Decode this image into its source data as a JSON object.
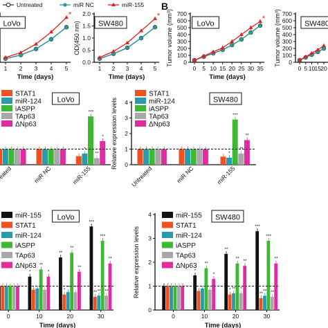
{
  "figure": {
    "panel_label_b": "B",
    "top_legend": [
      {
        "name": "Untreated",
        "color": "#333333",
        "marker": "open-circle"
      },
      {
        "name": "miR NC",
        "color": "#2a9a9a",
        "marker": "circle"
      },
      {
        "name": "miR-155",
        "color": "#e02020",
        "marker": "triangle"
      }
    ],
    "colors": {
      "Untreated": "#333333",
      "miR NC": "#2a9a9a",
      "miR-155": "#e02020",
      "STAT1": "#f05020",
      "miR-124": "#2a9aa8",
      "iASPP": "#3cb832",
      "TAp63": "#a8a8a8",
      "ΔNp63": "#e02ca0",
      "miR-155 bar": "#111111"
    }
  },
  "chart_data": [
    {
      "id": "a1",
      "type": "line",
      "title": "LoVo",
      "xlabel": "Time (days)",
      "ylabel": "",
      "x": [
        1,
        2,
        3,
        4,
        5
      ],
      "xticks": [
        "1",
        "2",
        "3",
        "4",
        "5"
      ],
      "ylim": [
        0,
        2.0
      ],
      "series": [
        {
          "name": "Untreated",
          "values": [
            0.15,
            0.3,
            0.55,
            0.95,
            1.45
          ]
        },
        {
          "name": "miR NC",
          "values": [
            0.15,
            0.3,
            0.55,
            0.95,
            1.45
          ]
        },
        {
          "name": "miR-155",
          "values": [
            0.2,
            0.4,
            0.75,
            1.25,
            1.85
          ]
        }
      ],
      "annotations": [
        "*"
      ]
    },
    {
      "id": "a2",
      "type": "line",
      "title": "SW480",
      "xlabel": "Time (days)",
      "ylabel": "OD(450 nm)",
      "x": [
        1,
        2,
        3,
        4,
        5
      ],
      "xticks": [
        "1",
        "2",
        "3",
        "4",
        "5"
      ],
      "yticks": [
        "0.0",
        "0.5",
        "1.0",
        "1.5",
        "2.0"
      ],
      "ylim": [
        0,
        2.0
      ],
      "series": [
        {
          "name": "Untreated",
          "values": [
            0.15,
            0.35,
            0.6,
            1.0,
            1.45
          ]
        },
        {
          "name": "miR NC",
          "values": [
            0.15,
            0.35,
            0.6,
            1.0,
            1.45
          ]
        },
        {
          "name": "miR-155",
          "values": [
            0.2,
            0.45,
            0.8,
            1.3,
            1.8
          ]
        }
      ],
      "annotations": [
        "*"
      ]
    },
    {
      "id": "b1",
      "type": "line",
      "title": "LoVo",
      "xlabel": "Time (days)",
      "ylabel": "Tumor volume (mm³)",
      "x": [
        0,
        5,
        10,
        15,
        20,
        25,
        30,
        35
      ],
      "xticks": [
        "0",
        "5",
        "10",
        "15",
        "20",
        "25",
        "30",
        "35"
      ],
      "yticks": [
        "0",
        "100",
        "200",
        "300",
        "400",
        "500",
        "600",
        "700"
      ],
      "ylim": [
        0,
        700
      ],
      "series": [
        {
          "name": "Untreated",
          "values": [
            30,
            80,
            130,
            180,
            250,
            330,
            430,
            530
          ]
        },
        {
          "name": "miR NC",
          "values": [
            30,
            80,
            130,
            180,
            250,
            330,
            430,
            530
          ]
        },
        {
          "name": "miR-155",
          "values": [
            30,
            90,
            150,
            210,
            300,
            400,
            500,
            590
          ]
        }
      ],
      "annotations": [
        "*"
      ]
    },
    {
      "id": "b2",
      "type": "line",
      "title": "SW480",
      "xlabel": "",
      "ylabel": "Tumor volume (mm³)",
      "x": [
        0,
        5,
        10,
        15,
        20
      ],
      "xticks": [
        "0",
        "5",
        "10",
        "15",
        "20"
      ],
      "yticks": [
        "0",
        "100",
        "200",
        "300",
        "400",
        "500",
        "600",
        "700"
      ],
      "ylim": [
        0,
        700
      ],
      "series": [
        {
          "name": "Untreated",
          "values": [
            30,
            70,
            110,
            150,
            200
          ]
        },
        {
          "name": "miR NC",
          "values": [
            30,
            70,
            110,
            150,
            200
          ]
        },
        {
          "name": "miR-155",
          "values": [
            30,
            80,
            130,
            180,
            240
          ]
        }
      ]
    },
    {
      "id": "c1",
      "type": "bar",
      "title": "LoVo",
      "ylabel": "",
      "categories": [
        "Untreated",
        "miR NC",
        "miR-155"
      ],
      "ylim": [
        0,
        4
      ],
      "reference_line": 1,
      "series": [
        {
          "name": "STAT1",
          "values": [
            1.0,
            1.0,
            0.55
          ]
        },
        {
          "name": "miR-124",
          "values": [
            1.0,
            1.0,
            0.72
          ]
        },
        {
          "name": "iASPP",
          "values": [
            1.0,
            1.0,
            3.1
          ]
        },
        {
          "name": "TAp63",
          "values": [
            1.0,
            1.0,
            0.42
          ]
        },
        {
          "name": "ΔNp63",
          "values": [
            1.0,
            1.0,
            1.52
          ]
        }
      ],
      "bar_labels": {
        "2": [
          "",
          "*",
          "***",
          "**",
          "*"
        ]
      }
    },
    {
      "id": "c2",
      "type": "bar",
      "title": "SW480",
      "ylabel": "Relative expression levels",
      "categories": [
        "Untreated",
        "miR NC",
        "miR-155"
      ],
      "yticks": [
        "0",
        "1",
        "2",
        "3",
        "4"
      ],
      "ylim": [
        0,
        4
      ],
      "reference_line": 1,
      "series": [
        {
          "name": "STAT1",
          "values": [
            1.0,
            1.0,
            0.52
          ]
        },
        {
          "name": "miR-124",
          "values": [
            1.0,
            1.0,
            0.45
          ]
        },
        {
          "name": "iASPP",
          "values": [
            1.0,
            1.0,
            2.9
          ]
        },
        {
          "name": "TAp63",
          "values": [
            1.0,
            1.0,
            0.72
          ]
        },
        {
          "name": "ΔNp63",
          "values": [
            1.0,
            1.0,
            1.58
          ]
        }
      ],
      "bar_labels": {
        "2": [
          "",
          "*",
          "***",
          "**",
          "**"
        ]
      }
    },
    {
      "id": "d1",
      "type": "bar",
      "title": "LoVo",
      "xlabel": "Time (days)",
      "ylabel": "",
      "categories": [
        "0",
        "10",
        "20",
        "30"
      ],
      "ylim": [
        0,
        4
      ],
      "reference_line": 1,
      "series": [
        {
          "name": "miR-155",
          "values": [
            1.0,
            1.4,
            2.2,
            3.5
          ]
        },
        {
          "name": "STAT1",
          "values": [
            1.0,
            0.85,
            0.65,
            0.55
          ]
        },
        {
          "name": "miR-124",
          "values": [
            1.0,
            0.9,
            0.75,
            0.6
          ]
        },
        {
          "name": "iASPP",
          "values": [
            1.0,
            1.7,
            2.4,
            2.9
          ]
        },
        {
          "name": "TAp63",
          "values": [
            1.0,
            0.85,
            0.75,
            0.6
          ]
        },
        {
          "name": "ΔNp63",
          "values": [
            1.0,
            1.4,
            1.6,
            1.95
          ]
        }
      ],
      "bar_labels": {
        "1": [
          "*",
          "",
          "",
          "**",
          "",
          "*"
        ],
        "2": [
          "**",
          "*",
          "**",
          "**",
          "*",
          "**"
        ],
        "3": [
          "***",
          "**",
          "**",
          "***",
          "**",
          "**"
        ]
      }
    },
    {
      "id": "d2",
      "type": "bar",
      "title": "SW480",
      "xlabel": "Time (days)",
      "ylabel": "Relative expression levels",
      "categories": [
        "0",
        "10",
        "20",
        "30"
      ],
      "yticks": [
        "0",
        "1",
        "2",
        "3",
        "4"
      ],
      "ylim": [
        0,
        4
      ],
      "reference_line": 1,
      "series": [
        {
          "name": "miR-155",
          "values": [
            1.0,
            1.45,
            2.35,
            3.3
          ]
        },
        {
          "name": "STAT1",
          "values": [
            1.0,
            0.8,
            0.65,
            0.5
          ]
        },
        {
          "name": "miR-124",
          "values": [
            1.0,
            0.9,
            0.7,
            0.6
          ]
        },
        {
          "name": "iASPP",
          "values": [
            1.0,
            1.75,
            1.95,
            2.9
          ]
        },
        {
          "name": "TAp63",
          "values": [
            1.0,
            0.85,
            0.7,
            0.55
          ]
        },
        {
          "name": "ΔNp63",
          "values": [
            1.0,
            1.3,
            1.85,
            1.95
          ]
        }
      ],
      "bar_labels": {
        "1": [
          "*",
          "",
          "",
          "**",
          "",
          "*"
        ],
        "2": [
          "**",
          "*",
          "**",
          "**",
          "*",
          "**"
        ],
        "3": [
          "***",
          "**",
          "**",
          "***",
          "**",
          "**"
        ]
      }
    }
  ]
}
